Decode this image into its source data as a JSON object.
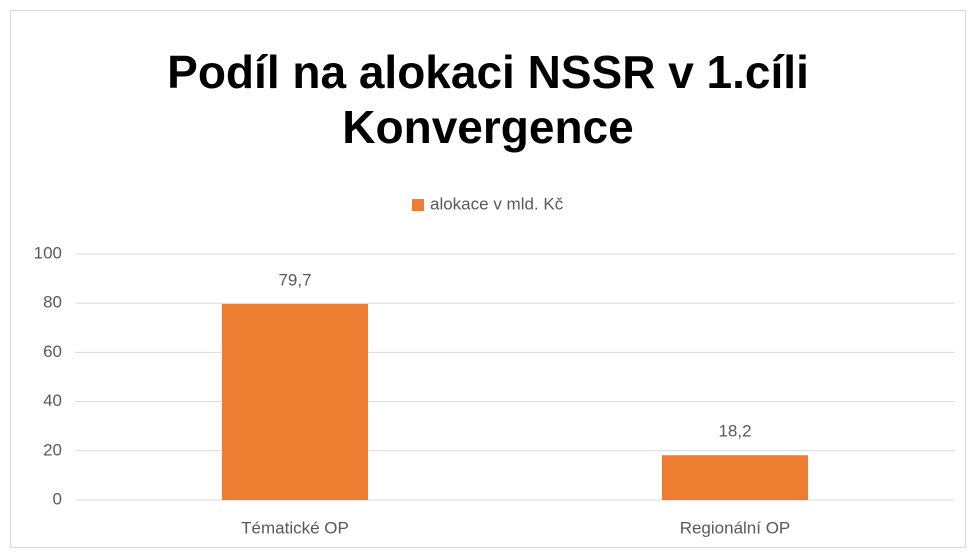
{
  "chart_data": {
    "type": "bar",
    "title": [
      "Podíl na alokaci NSSR v 1.cíli",
      "Konvergence"
    ],
    "categories": [
      "Tématické OP",
      "Regionální OP"
    ],
    "series": [
      {
        "name": "alokace v mld. Kč",
        "color": "#ed7d31",
        "values": [
          79.7,
          18.2
        ],
        "value_labels": [
          "79,7",
          "18,2"
        ]
      }
    ],
    "ylim": [
      0,
      100
    ],
    "yticks": [
      0,
      20,
      40,
      60,
      80,
      100
    ],
    "grid": true,
    "legend": "top"
  }
}
